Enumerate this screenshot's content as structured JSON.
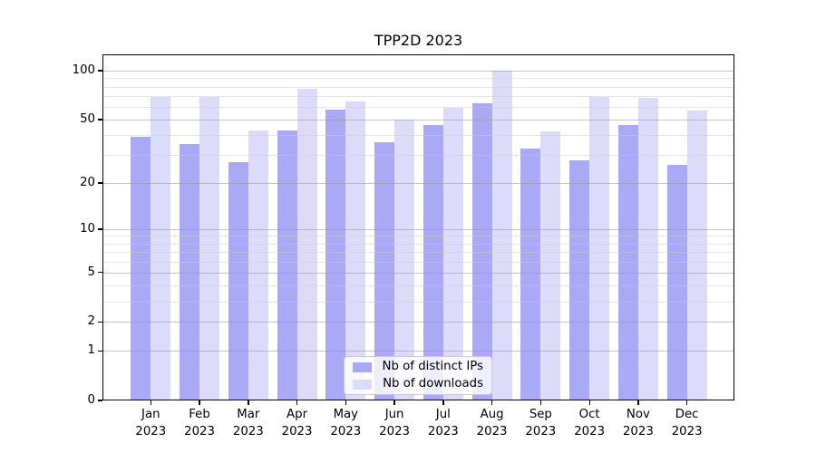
{
  "chart_data": {
    "type": "bar",
    "title": "TPP2D 2023",
    "categories": [
      "Jan",
      "Feb",
      "Mar",
      "Apr",
      "May",
      "Jun",
      "Jul",
      "Aug",
      "Sep",
      "Oct",
      "Nov",
      "Dec"
    ],
    "year_label": "2023",
    "series": [
      {
        "name": "Nb of distinct IPs",
        "color": "#a9a9f6",
        "values": [
          39,
          35,
          27,
          43,
          58,
          36,
          46,
          63,
          33,
          28,
          46,
          26
        ]
      },
      {
        "name": "Nb of downloads",
        "color": "#dcdcfa",
        "values": [
          69,
          69,
          43,
          77,
          65,
          50,
          59,
          100,
          42,
          69,
          68,
          57
        ]
      }
    ],
    "xlabel": "",
    "ylabel": "",
    "y_scale": "log10(1+v)",
    "y_ticks": [
      0,
      1,
      2,
      5,
      10,
      20,
      50,
      100
    ],
    "y_minor_ticks": [
      3,
      4,
      6,
      7,
      8,
      9,
      30,
      40,
      60,
      70,
      80,
      90
    ],
    "ylim": [
      0,
      126
    ],
    "grid": true,
    "legend_position": "lower center"
  }
}
